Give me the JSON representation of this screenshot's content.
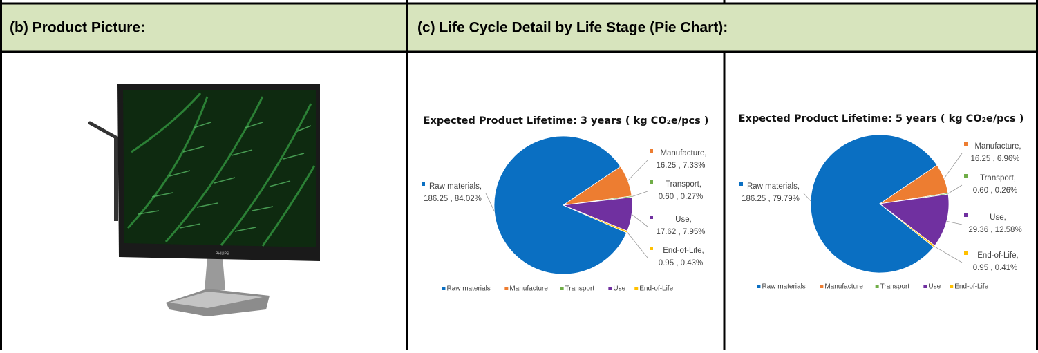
{
  "table": {
    "headers": [
      "(b) Product Picture:",
      "(c) Life Cycle Detail by Life Stage (Pie Chart):"
    ]
  },
  "chart_data": [
    {
      "type": "pie",
      "title": "Expected Product Lifetime: 3 years ( kg CO₂e/pcs )",
      "categories": [
        "Raw materials",
        "Manufacture",
        "Transport",
        "Use",
        "End-of-Life"
      ],
      "values": [
        186.25,
        16.25,
        0.6,
        17.62,
        0.95
      ],
      "value_labels": [
        "186.25 , 84.02%",
        "16.25 , 7.33%",
        "0.60 , 0.27%",
        "17.62 , 7.95%",
        "0.95 , 0.43%"
      ],
      "colors": [
        "#0a6fc2",
        "#ed7d31",
        "#70ad47",
        "#7030a0",
        "#ffc000"
      ],
      "legend": "bottom"
    },
    {
      "type": "pie",
      "title": "Expected Product Lifetime: 5 years ( kg CO₂e/pcs )",
      "categories": [
        "Raw materials",
        "Manufacture",
        "Transport",
        "Use",
        "End-of-Life"
      ],
      "values": [
        186.25,
        16.25,
        0.6,
        29.36,
        0.95
      ],
      "value_labels": [
        "186.25 , 79.79%",
        "16.25 , 6.96%",
        "0.60 , 0.26%",
        "29.36 , 12.58%",
        "0.95 , 0.41%"
      ],
      "colors": [
        "#0a6fc2",
        "#ed7d31",
        "#70ad47",
        "#7030a0",
        "#ffc000"
      ],
      "legend": "bottom"
    }
  ]
}
